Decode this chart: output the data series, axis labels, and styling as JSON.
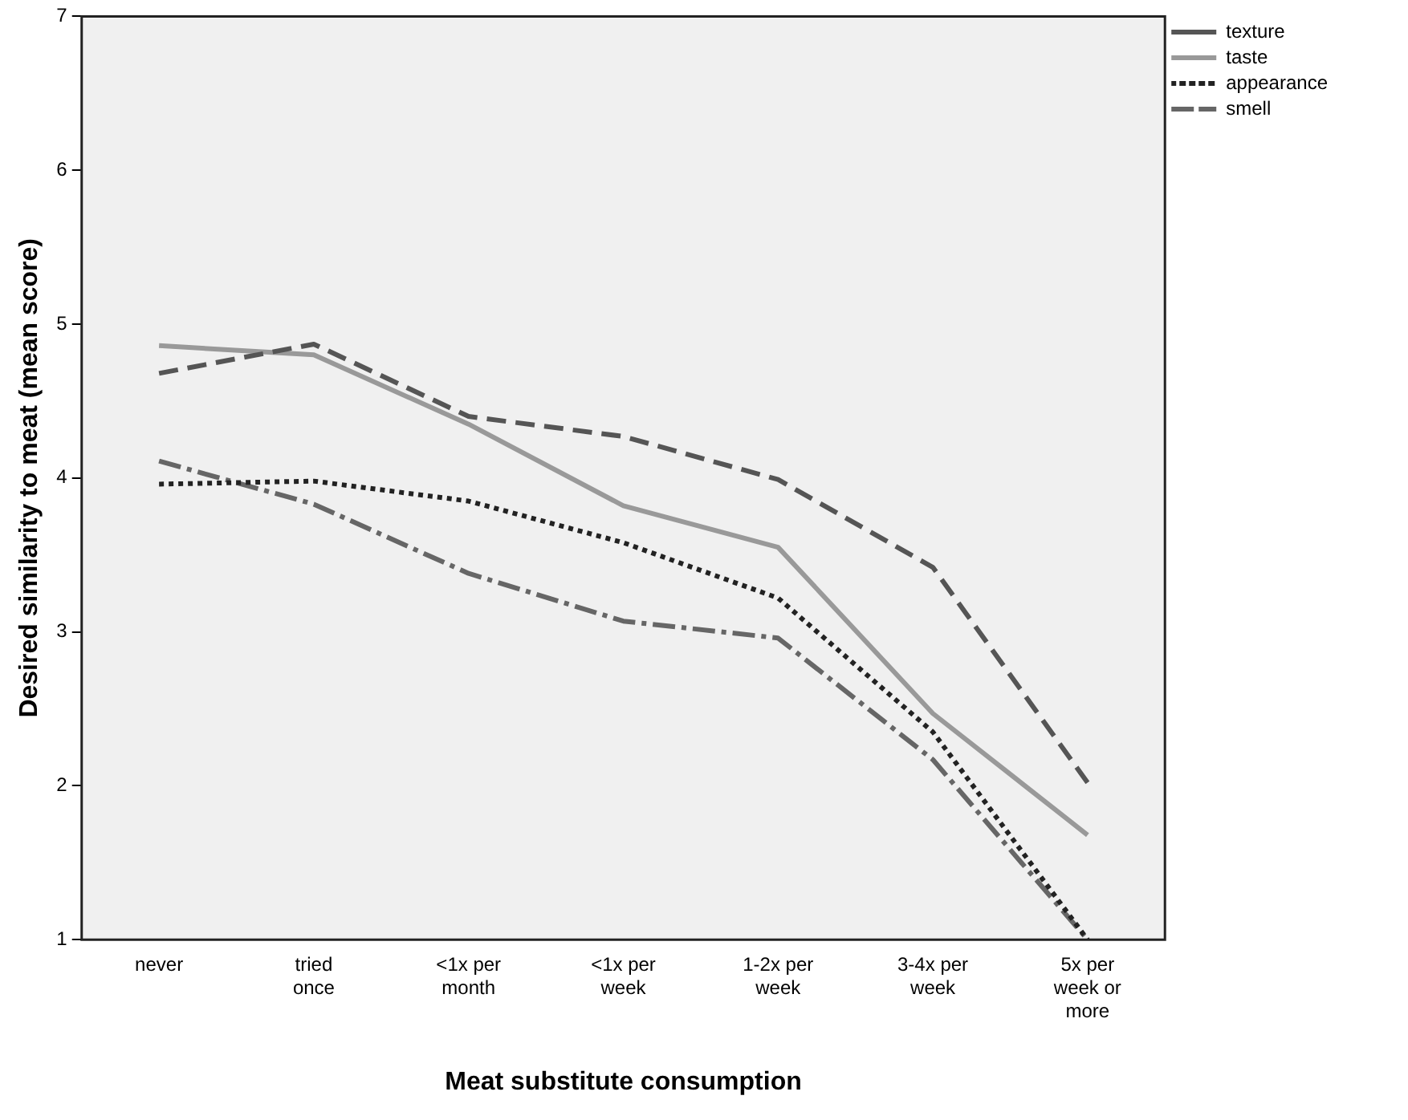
{
  "chart_data": {
    "type": "line",
    "xlabel": "Meat substitute consumption",
    "ylabel": "Desired similarity to meat (mean score)",
    "categories": [
      "never",
      "tried once",
      "<1x per month",
      "<1x per week",
      "1-2x per week",
      "3-4x per week",
      "5x per week or more"
    ],
    "series": [
      {
        "name": "texture",
        "color": "#555555",
        "line_style": "dashed",
        "values": [
          4.68,
          4.87,
          4.4,
          4.27,
          3.99,
          3.42,
          2.02
        ]
      },
      {
        "name": "taste",
        "color": "#999999",
        "line_style": "solid",
        "values": [
          4.86,
          4.8,
          4.35,
          3.82,
          3.55,
          2.47,
          1.68
        ]
      },
      {
        "name": "appearance",
        "color": "#222222",
        "line_style": "dotted",
        "values": [
          3.96,
          3.98,
          3.85,
          3.58,
          3.22,
          2.35,
          1.0
        ]
      },
      {
        "name": "smell",
        "color": "#666666",
        "line_style": "dashdot",
        "values": [
          4.11,
          3.83,
          3.38,
          3.07,
          2.96,
          2.17,
          1.0
        ]
      }
    ],
    "ylim": [
      1,
      7
    ],
    "yticks": [
      1,
      2,
      3,
      4,
      5,
      6,
      7
    ],
    "grid": false,
    "legend": "top right",
    "marker": "none"
  }
}
